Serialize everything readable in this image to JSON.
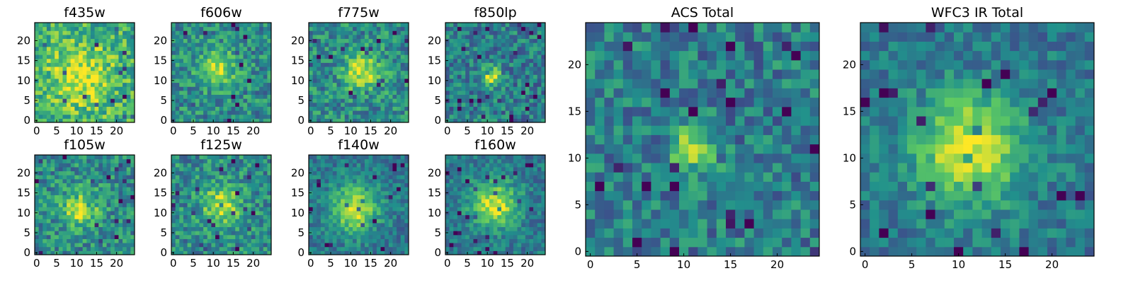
{
  "colormap": {
    "name": "viridis",
    "stops": [
      "#440154",
      "#3b528b",
      "#21918c",
      "#5ec962",
      "#fde725"
    ]
  },
  "chart_data": [
    {
      "type": "heatmap",
      "title": "f435w",
      "pixels": 25,
      "xlim": [
        0,
        24
      ],
      "ylim": [
        0,
        24
      ],
      "x_ticks": [
        0,
        5,
        10,
        15,
        20
      ],
      "y_ticks": [
        0,
        5,
        10,
        15,
        20
      ],
      "peak": {
        "x": 11,
        "y": 11
      },
      "brightness": "diffuse"
    },
    {
      "type": "heatmap",
      "title": "f606w",
      "pixels": 25,
      "xlim": [
        0,
        24
      ],
      "ylim": [
        0,
        24
      ],
      "x_ticks": [
        0,
        5,
        10,
        15,
        20
      ],
      "y_ticks": [
        0,
        5,
        10,
        15,
        20
      ],
      "peak": {
        "x": 11,
        "y": 13
      },
      "brightness": "moderate"
    },
    {
      "type": "heatmap",
      "title": "f775w",
      "pixels": 25,
      "xlim": [
        0,
        24
      ],
      "ylim": [
        0,
        24
      ],
      "x_ticks": [
        0,
        5,
        10,
        15,
        20
      ],
      "y_ticks": [
        0,
        5,
        10,
        15,
        20
      ],
      "peak": {
        "x": 13,
        "y": 12
      },
      "brightness": "moderate"
    },
    {
      "type": "heatmap",
      "title": "f850lp",
      "pixels": 25,
      "xlim": [
        0,
        24
      ],
      "ylim": [
        0,
        24
      ],
      "x_ticks": [
        0,
        5,
        10,
        15,
        20
      ],
      "y_ticks": [
        0,
        5,
        10,
        15,
        20
      ],
      "peak": {
        "x": 11,
        "y": 11
      },
      "brightness": "compact"
    },
    {
      "type": "heatmap",
      "title": "f105w",
      "pixels": 25,
      "xlim": [
        0,
        24
      ],
      "ylim": [
        0,
        24
      ],
      "x_ticks": [
        0,
        5,
        10,
        15,
        20
      ],
      "y_ticks": [
        0,
        5,
        10,
        15,
        20
      ],
      "peak": {
        "x": 11,
        "y": 11
      },
      "brightness": "moderate"
    },
    {
      "type": "heatmap",
      "title": "f125w",
      "pixels": 25,
      "xlim": [
        0,
        24
      ],
      "ylim": [
        0,
        24
      ],
      "x_ticks": [
        0,
        5,
        10,
        15,
        20
      ],
      "y_ticks": [
        0,
        5,
        10,
        15,
        20
      ],
      "peak": {
        "x": 12,
        "y": 12
      },
      "brightness": "moderate"
    },
    {
      "type": "heatmap",
      "title": "f140w",
      "pixels": 25,
      "xlim": [
        0,
        24
      ],
      "ylim": [
        0,
        24
      ],
      "x_ticks": [
        0,
        5,
        10,
        15,
        20
      ],
      "y_ticks": [
        0,
        5,
        10,
        15,
        20
      ],
      "peak": {
        "x": 11,
        "y": 11
      },
      "brightness": "extended"
    },
    {
      "type": "heatmap",
      "title": "f160w",
      "pixels": 25,
      "xlim": [
        0,
        24
      ],
      "ylim": [
        0,
        24
      ],
      "x_ticks": [
        0,
        5,
        10,
        15,
        20
      ],
      "y_ticks": [
        0,
        5,
        10,
        15,
        20
      ],
      "peak": {
        "x": 12,
        "y": 12
      },
      "brightness": "extended"
    },
    {
      "type": "heatmap",
      "title": "ACS Total",
      "pixels": 25,
      "xlim": [
        0,
        24
      ],
      "ylim": [
        0,
        24
      ],
      "x_ticks": [
        0,
        5,
        10,
        15,
        20
      ],
      "y_ticks": [
        0,
        5,
        10,
        15,
        20
      ],
      "peak": {
        "x": 11,
        "y": 11
      },
      "brightness": "compact"
    },
    {
      "type": "heatmap",
      "title": "WFC3 IR Total",
      "pixels": 25,
      "xlim": [
        0,
        24
      ],
      "ylim": [
        0,
        24
      ],
      "x_ticks": [
        0,
        5,
        10,
        15,
        20
      ],
      "y_ticks": [
        0,
        5,
        10,
        15,
        20
      ],
      "peak": {
        "x": 11,
        "y": 11
      },
      "brightness": "extended"
    }
  ]
}
